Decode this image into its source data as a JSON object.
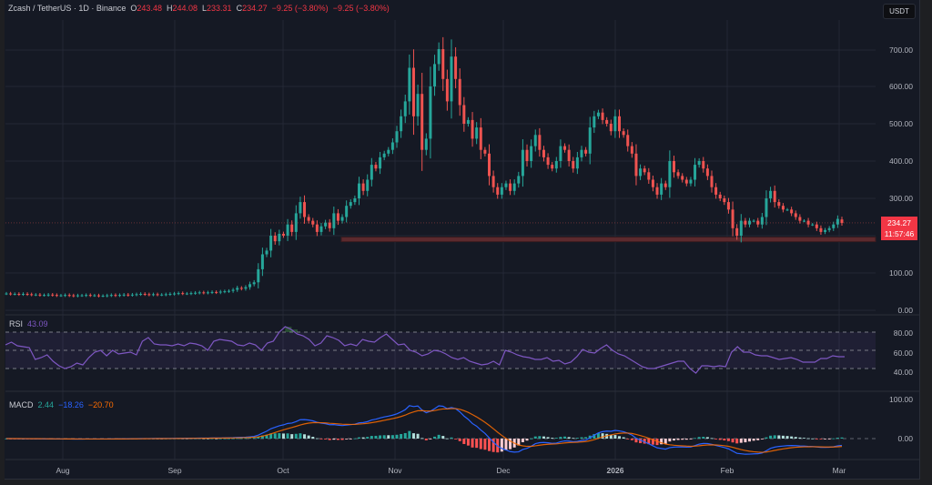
{
  "header": {
    "symbol": "Zcash / TetherUS · 1D · Binance",
    "open_label": "O",
    "open": "243.48",
    "high_label": "H",
    "high": "244.08",
    "low_label": "L",
    "low": "233.31",
    "close_label": "C",
    "close": "234.27",
    "change": "−9.25 (−3.80%)",
    "change2": "−9.25 (−3.80%)"
  },
  "unit_button": "USDT",
  "last_price": {
    "price": "234.27",
    "countdown": "11:57:46"
  },
  "price_axis": [
    "700.00",
    "600.00",
    "500.00",
    "400.00",
    "300.00",
    "100.00",
    "0.00"
  ],
  "rsi": {
    "label": "RSI",
    "value": "43.09",
    "axis": [
      "80.00",
      "60.00",
      "40.00"
    ]
  },
  "macd": {
    "label": "MACD",
    "hist": "2.44",
    "macd": "−18.26",
    "signal": "−20.70",
    "axis": [
      "100.00",
      "0.00"
    ]
  },
  "time_axis": [
    "Aug",
    "Sep",
    "Oct",
    "Nov",
    "Dec",
    "2026",
    "Feb",
    "Mar"
  ],
  "colors": {
    "background": "#151924",
    "up": "#26a69a",
    "down": "#ef5350",
    "rsi_line": "#7e57c2",
    "macd_line": "#2962ff",
    "signal_line": "#ff6d00",
    "support_zone": "#5c2a2e"
  },
  "chart_data": [
    {
      "type": "candlestick",
      "title": "Zcash / TetherUS · 1D · Binance",
      "xlabel": "",
      "ylabel": "USDT",
      "ylim": [
        0,
        760
      ],
      "x_ticks": [
        "Aug",
        "Sep",
        "Oct",
        "Nov",
        "Dec",
        "2026",
        "Feb",
        "Mar"
      ],
      "y_ticks": [
        0,
        100,
        300,
        400,
        500,
        600,
        700
      ],
      "grid": true,
      "annotations": [
        {
          "type": "horizontal_zone",
          "price": 190,
          "from": "mid-Oct",
          "to": "Mar",
          "color": "#5c2a2e"
        }
      ],
      "last": {
        "open": 243.48,
        "high": 244.08,
        "low": 233.31,
        "close": 234.27
      },
      "close_series": [
        45,
        44,
        44,
        43,
        44,
        43,
        42,
        42,
        41,
        41,
        42,
        41,
        40,
        40,
        41,
        40,
        39,
        40,
        40,
        41,
        40,
        40,
        39,
        39,
        40,
        41,
        40,
        41,
        42,
        41,
        42,
        43,
        44,
        43,
        42,
        43,
        42,
        42,
        43,
        44,
        45,
        46,
        45,
        45,
        46,
        47,
        48,
        47,
        48,
        49,
        48,
        50,
        51,
        52,
        55,
        60,
        58,
        62,
        70,
        75,
        110,
        150,
        160,
        200,
        185,
        205,
        200,
        230,
        210,
        260,
        290,
        250,
        240,
        230,
        210,
        225,
        235,
        220,
        260,
        240,
        250,
        280,
        290,
        300,
        340,
        320,
        350,
        390,
        380,
        410,
        420,
        430,
        450,
        480,
        520,
        560,
        650,
        520,
        580,
        430,
        460,
        600,
        660,
        700,
        620,
        560,
        680,
        620,
        550,
        500,
        510,
        460,
        490,
        430,
        420,
        360,
        330,
        310,
        330,
        340,
        320,
        340,
        360,
        430,
        400,
        440,
        470,
        430,
        410,
        390,
        380,
        400,
        440,
        430,
        400,
        380,
        410,
        430,
        420,
        490,
        520,
        530,
        510,
        500,
        480,
        520,
        480,
        470,
        440,
        420,
        360,
        380,
        370,
        350,
        330,
        310,
        340,
        330,
        400,
        370,
        360,
        350,
        340,
        350,
        390,
        400,
        380,
        360,
        330,
        310,
        300,
        290,
        270,
        220,
        200,
        240,
        230,
        240,
        240,
        230,
        250,
        300,
        320,
        290,
        280,
        270,
        270,
        260,
        250,
        240,
        240,
        230,
        230,
        220,
        210,
        215,
        220,
        230,
        245,
        234
      ]
    },
    {
      "type": "line",
      "title": "RSI",
      "ylim": [
        10,
        90
      ],
      "bands": [
        70,
        50,
        30
      ],
      "last": 43.09,
      "series": [
        {
          "name": "RSI",
          "values": [
            56,
            59,
            55,
            54,
            53,
            40,
            42,
            45,
            38,
            33,
            30,
            32,
            36,
            34,
            42,
            48,
            50,
            44,
            50,
            46,
            47,
            48,
            45,
            60,
            64,
            57,
            56,
            56,
            55,
            57,
            55,
            58,
            57,
            55,
            50,
            60,
            62,
            61,
            60,
            56,
            55,
            58,
            56,
            50,
            58,
            60,
            70,
            76,
            73,
            68,
            66,
            62,
            55,
            58,
            66,
            64,
            61,
            55,
            57,
            55,
            62,
            60,
            59,
            64,
            68,
            62,
            56,
            57,
            50,
            48,
            44,
            46,
            50,
            49,
            46,
            42,
            40,
            42,
            38,
            36,
            34,
            35,
            38,
            34,
            50,
            48,
            45,
            43,
            42,
            40,
            40,
            42,
            38,
            39,
            35,
            37,
            43,
            51,
            48,
            47,
            52,
            56,
            50,
            46,
            44,
            40,
            36,
            32,
            30,
            30,
            32,
            34,
            36,
            38,
            38,
            30,
            25,
            33,
            33,
            32,
            33,
            32,
            48,
            54,
            48,
            48,
            45,
            44,
            44,
            42,
            40,
            41,
            42,
            40,
            37,
            37,
            37,
            41,
            41,
            44,
            43,
            43
          ]
        }
      ]
    },
    {
      "type": "line",
      "title": "MACD",
      "ylim": [
        -60,
        110
      ],
      "last": {
        "histogram": 2.44,
        "macd": -18.26,
        "signal": -20.7
      }
    }
  ]
}
